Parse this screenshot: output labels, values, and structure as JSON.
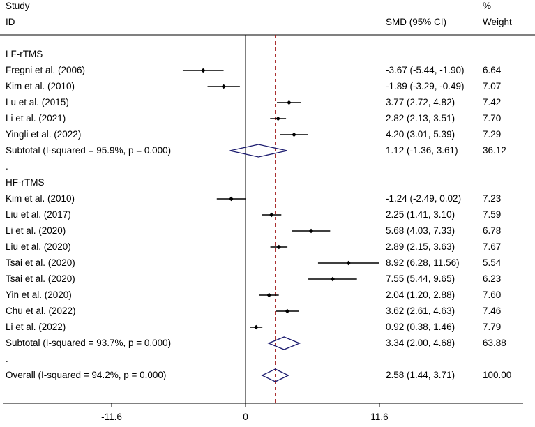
{
  "header": {
    "study_label": "Study",
    "id_label": "ID",
    "smd_label": "SMD (95% CI)",
    "pct_label": "%",
    "weight_label": "Weight"
  },
  "colors": {
    "ci_line": "#000000",
    "diamond": "#1a1a6e",
    "overall_line": "#a01a1a",
    "null_line": "#000000"
  },
  "chart_data": {
    "type": "forest",
    "title": "",
    "xlabel": "",
    "xlim": [
      -15.5,
      15.5
    ],
    "ticks": [
      {
        "value": -11.6,
        "label": "-11.6"
      },
      {
        "value": 0,
        "label": "0"
      },
      {
        "value": 11.6,
        "label": "11.6"
      }
    ],
    "overall_estimate": 2.58,
    "rows": [
      {
        "kind": "group",
        "label": "LF-rTMS"
      },
      {
        "kind": "study",
        "label": "Fregni et al. (2006)",
        "est": -3.67,
        "lo": -5.44,
        "hi": -1.9,
        "ci_text": "-3.67 (-5.44, -1.90)",
        "weight": "6.64"
      },
      {
        "kind": "study",
        "label": "Kim et al. (2010)",
        "est": -1.89,
        "lo": -3.29,
        "hi": -0.49,
        "ci_text": "-1.89 (-3.29, -0.49)",
        "weight": "7.07"
      },
      {
        "kind": "study",
        "label": "Lu et al. (2015)",
        "est": 3.77,
        "lo": 2.72,
        "hi": 4.82,
        "ci_text": "3.77 (2.72, 4.82)",
        "weight": "7.42"
      },
      {
        "kind": "study",
        "label": "Li et al. (2021)",
        "est": 2.82,
        "lo": 2.13,
        "hi": 3.51,
        "ci_text": "2.82 (2.13, 3.51)",
        "weight": "7.70"
      },
      {
        "kind": "study",
        "label": "Yingli et al. (2022)",
        "est": 4.2,
        "lo": 3.01,
        "hi": 5.39,
        "ci_text": "4.20 (3.01, 5.39)",
        "weight": "7.29"
      },
      {
        "kind": "subtotal",
        "label": "Subtotal  (I-squared = 95.9%, p = 0.000)",
        "est": 1.12,
        "lo": -1.36,
        "hi": 3.61,
        "ci_text": "1.12 (-1.36, 3.61)",
        "weight": "36.12"
      },
      {
        "kind": "dot",
        "label": "."
      },
      {
        "kind": "group",
        "label": "HF-rTMS"
      },
      {
        "kind": "study",
        "label": "Kim et al. (2010)",
        "est": -1.24,
        "lo": -2.49,
        "hi": 0.02,
        "ci_text": "-1.24 (-2.49, 0.02)",
        "weight": "7.23"
      },
      {
        "kind": "study",
        "label": "Liu et al. (2017)",
        "est": 2.25,
        "lo": 1.41,
        "hi": 3.1,
        "ci_text": "2.25 (1.41, 3.10)",
        "weight": "7.59"
      },
      {
        "kind": "study",
        "label": "Li et al. (2020)",
        "est": 5.68,
        "lo": 4.03,
        "hi": 7.33,
        "ci_text": "5.68 (4.03, 7.33)",
        "weight": "6.78"
      },
      {
        "kind": "study",
        "label": "Liu et al. (2020)",
        "est": 2.89,
        "lo": 2.15,
        "hi": 3.63,
        "ci_text": "2.89 (2.15, 3.63)",
        "weight": "7.67"
      },
      {
        "kind": "study",
        "label": "Tsai et al. (2020)",
        "est": 8.92,
        "lo": 6.28,
        "hi": 11.56,
        "ci_text": "8.92 (6.28, 11.56)",
        "weight": "5.54"
      },
      {
        "kind": "study",
        "label": "Tsai et al. (2020)",
        "est": 7.55,
        "lo": 5.44,
        "hi": 9.65,
        "ci_text": "7.55 (5.44, 9.65)",
        "weight": "6.23"
      },
      {
        "kind": "study",
        "label": "Yin et al. (2020)",
        "est": 2.04,
        "lo": 1.2,
        "hi": 2.88,
        "ci_text": "2.04 (1.20, 2.88)",
        "weight": "7.60"
      },
      {
        "kind": "study",
        "label": "Chu et al. (2022)",
        "est": 3.62,
        "lo": 2.61,
        "hi": 4.63,
        "ci_text": "3.62 (2.61, 4.63)",
        "weight": "7.46"
      },
      {
        "kind": "study",
        "label": "Li et al. (2022)",
        "est": 0.92,
        "lo": 0.38,
        "hi": 1.46,
        "ci_text": "0.92 (0.38, 1.46)",
        "weight": "7.79"
      },
      {
        "kind": "subtotal",
        "label": "Subtotal  (I-squared = 93.7%, p = 0.000)",
        "est": 3.34,
        "lo": 2.0,
        "hi": 4.68,
        "ci_text": "3.34 (2.00, 4.68)",
        "weight": "63.88"
      },
      {
        "kind": "dot",
        "label": "."
      },
      {
        "kind": "overall",
        "label": "Overall  (I-squared = 94.2%, p = 0.000)",
        "est": 2.58,
        "lo": 1.44,
        "hi": 3.71,
        "ci_text": "2.58 (1.44, 3.71)",
        "weight": "100.00"
      }
    ]
  }
}
